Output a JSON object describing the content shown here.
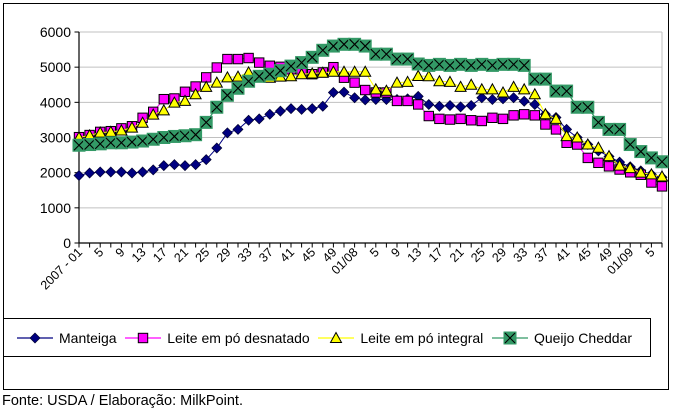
{
  "footer": {
    "source": "Fonte: USDA / Elaboração: MilkPoint."
  },
  "colors": {
    "background": "#FFFFFF",
    "gridline": "#C0C0C0",
    "axis": "#000000",
    "plot_border": "#C0C0C0",
    "marker_outline": "#000000"
  },
  "chart_data": {
    "type": "line",
    "title": "",
    "xlabel": "",
    "ylabel": "",
    "grid": true,
    "legend_position": "bottom",
    "x_axis": {
      "n_points": 56,
      "points_per_label": 2,
      "tick_labels": [
        "2007 - 01",
        "5",
        "9",
        "13",
        "17",
        "21",
        "25",
        "29",
        "33",
        "37",
        "41",
        "45",
        "49",
        "01/08",
        "5",
        "9",
        "13",
        "17",
        "21",
        "25",
        "29",
        "33",
        "37",
        "41",
        "45",
        "49",
        "01/09",
        "5"
      ]
    },
    "y_axis": {
      "min": 0,
      "max": 6000,
      "step": 1000,
      "tick_labels": [
        "0",
        "1000",
        "2000",
        "3000",
        "4000",
        "5000",
        "6000"
      ]
    },
    "series": [
      {
        "label": "Manteiga",
        "marker": "diamond",
        "color": "#000080",
        "values": [
          1920,
          1990,
          2020,
          2020,
          2020,
          1990,
          2020,
          2080,
          2200,
          2230,
          2200,
          2230,
          2370,
          2700,
          3130,
          3230,
          3490,
          3530,
          3660,
          3750,
          3820,
          3800,
          3820,
          3890,
          4280,
          4290,
          4130,
          4070,
          4080,
          4080,
          4080,
          4100,
          4170,
          3940,
          3890,
          3910,
          3870,
          3910,
          4130,
          4080,
          4100,
          4130,
          4030,
          3940,
          3660,
          3570,
          3230,
          3000,
          2800,
          2620,
          2460,
          2300,
          2170,
          2050,
          1950,
          1870
        ]
      },
      {
        "label": "Leite em pó desnatado",
        "marker": "square",
        "color": "#FF00FF",
        "values": [
          3010,
          3070,
          3160,
          3180,
          3260,
          3320,
          3560,
          3730,
          4090,
          4110,
          4300,
          4450,
          4710,
          4990,
          5230,
          5230,
          5260,
          5130,
          5040,
          5010,
          4940,
          4850,
          4800,
          4850,
          5000,
          4700,
          4560,
          4350,
          4280,
          4280,
          4040,
          4040,
          3940,
          3610,
          3530,
          3510,
          3530,
          3490,
          3470,
          3560,
          3530,
          3630,
          3660,
          3630,
          3370,
          3230,
          2850,
          2800,
          2420,
          2280,
          2180,
          2090,
          2010,
          1940,
          1720,
          1610
        ]
      },
      {
        "label": "Leite em pó integral",
        "marker": "triangle",
        "color": "#FFFF00",
        "values": [
          3000,
          3060,
          3140,
          3160,
          3200,
          3280,
          3420,
          3650,
          3770,
          3990,
          4040,
          4230,
          4440,
          4560,
          4710,
          4730,
          4850,
          4740,
          4700,
          4730,
          4740,
          4800,
          4820,
          4840,
          4870,
          4870,
          4870,
          4870,
          4370,
          4330,
          4560,
          4580,
          4750,
          4740,
          4600,
          4580,
          4440,
          4500,
          4370,
          4370,
          4280,
          4440,
          4370,
          4230,
          3660,
          3530,
          3040,
          3000,
          2800,
          2710,
          2470,
          2200,
          2130,
          2000,
          1950,
          1890
        ]
      },
      {
        "label": "Queijo Cheddar",
        "marker": "x-square",
        "color": "#339966",
        "values": [
          2780,
          2800,
          2820,
          2850,
          2850,
          2870,
          2900,
          2950,
          3000,
          3030,
          3050,
          3080,
          3430,
          3860,
          4200,
          4400,
          4600,
          4740,
          4800,
          4900,
          5030,
          5130,
          5280,
          5480,
          5600,
          5650,
          5650,
          5600,
          5370,
          5370,
          5230,
          5230,
          5090,
          5050,
          5080,
          5050,
          5080,
          5050,
          5080,
          5050,
          5080,
          5080,
          5050,
          4660,
          4660,
          4320,
          4320,
          3860,
          3860,
          3430,
          3230,
          3230,
          2800,
          2600,
          2420,
          2310
        ]
      }
    ]
  }
}
